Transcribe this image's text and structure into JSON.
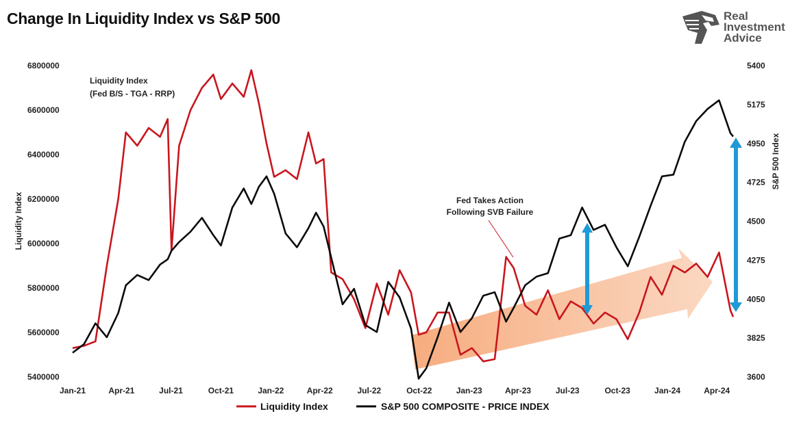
{
  "title": "Change In Liquidity Index vs S&P 500",
  "logo": {
    "line1": "Real",
    "line2": "Investment",
    "line3": "Advice",
    "icon": "eagle-head-icon"
  },
  "colors": {
    "liquidity": "#c8161d",
    "sp500": "#0a0a0a",
    "arrow_blue": "#1f9ad6",
    "trend_arrow": "#f5b38a"
  },
  "annotations": {
    "liquidity_label_line1": "Liquidity Index",
    "liquidity_label_line2": "(Fed B/S - TGA - RRP)",
    "fed_line1": "Fed Takes Action",
    "fed_line2": "Following SVB Failure"
  },
  "chart_data": {
    "type": "line",
    "xlabel": "",
    "ylabel_left": "Liquidity Index",
    "ylabel_right": "S&P 500 Index",
    "ylim_left": [
      5400000,
      6800000
    ],
    "ylim_right": [
      3600,
      5400
    ],
    "yticks_left": [
      "6800000",
      "6600000",
      "6400000",
      "6200000",
      "6000000",
      "5800000",
      "5600000",
      "5400000"
    ],
    "yticks_right": [
      "5400",
      "5175",
      "4950",
      "4725",
      "4500",
      "4275",
      "4050",
      "3825",
      "3600"
    ],
    "x_range": [
      "2021-01-01",
      "2024-05-01"
    ],
    "xticks": [
      "Jan-21",
      "Apr-21",
      "Jul-21",
      "Oct-21",
      "Jan-22",
      "Apr-22",
      "Jul-22",
      "Oct-22",
      "Jan-23",
      "Apr-23",
      "Jul-23",
      "Oct-23",
      "Jan-24",
      "Apr-24"
    ],
    "legend": [
      "Liquidity Index",
      "S&P 500 COMPOSITE - PRICE INDEX"
    ],
    "legend_position": "bottom",
    "grid": false,
    "series": [
      {
        "name": "Liquidity Index",
        "axis": "left",
        "x": [
          "2021-01-01",
          "2021-01-22",
          "2021-02-12",
          "2021-03-05",
          "2021-03-26",
          "2021-04-09",
          "2021-04-30",
          "2021-05-21",
          "2021-06-11",
          "2021-06-25",
          "2021-07-02",
          "2021-07-16",
          "2021-08-06",
          "2021-08-27",
          "2021-09-17",
          "2021-10-01",
          "2021-10-22",
          "2021-11-12",
          "2021-11-26",
          "2021-12-10",
          "2021-12-24",
          "2022-01-07",
          "2022-01-28",
          "2022-02-18",
          "2022-03-11",
          "2022-03-25",
          "2022-04-08",
          "2022-04-22",
          "2022-05-13",
          "2022-06-03",
          "2022-06-24",
          "2022-07-15",
          "2022-08-05",
          "2022-08-26",
          "2022-09-16",
          "2022-09-30",
          "2022-10-14",
          "2022-11-04",
          "2022-11-25",
          "2022-12-16",
          "2023-01-06",
          "2023-01-27",
          "2023-02-17",
          "2023-03-10",
          "2023-03-24",
          "2023-04-14",
          "2023-05-05",
          "2023-05-26",
          "2023-06-16",
          "2023-07-07",
          "2023-07-28",
          "2023-08-18",
          "2023-09-08",
          "2023-09-29",
          "2023-10-20",
          "2023-11-10",
          "2023-12-01",
          "2023-12-22",
          "2024-01-12",
          "2024-02-02",
          "2024-02-23",
          "2024-03-15",
          "2024-04-05",
          "2024-04-26",
          "2024-05-01"
        ],
        "values": [
          5530000,
          5540000,
          5560000,
          5900000,
          6200000,
          6500000,
          6440000,
          6520000,
          6480000,
          6560000,
          5970000,
          6440000,
          6600000,
          6700000,
          6760000,
          6650000,
          6720000,
          6660000,
          6780000,
          6630000,
          6450000,
          6300000,
          6330000,
          6290000,
          6500000,
          6360000,
          6380000,
          5870000,
          5840000,
          5750000,
          5620000,
          5820000,
          5680000,
          5880000,
          5780000,
          5590000,
          5600000,
          5690000,
          5690000,
          5500000,
          5530000,
          5470000,
          5480000,
          5940000,
          5890000,
          5720000,
          5680000,
          5790000,
          5660000,
          5740000,
          5710000,
          5640000,
          5690000,
          5660000,
          5570000,
          5690000,
          5850000,
          5770000,
          5900000,
          5870000,
          5910000,
          5850000,
          5960000,
          5700000,
          5670000
        ]
      },
      {
        "name": "S&P 500 COMPOSITE - PRICE INDEX",
        "axis": "right",
        "x": [
          "2021-01-01",
          "2021-01-22",
          "2021-02-12",
          "2021-03-05",
          "2021-03-26",
          "2021-04-09",
          "2021-04-30",
          "2021-05-21",
          "2021-06-11",
          "2021-06-25",
          "2021-07-02",
          "2021-07-16",
          "2021-08-06",
          "2021-08-27",
          "2021-09-17",
          "2021-10-01",
          "2021-10-22",
          "2021-11-12",
          "2021-11-26",
          "2021-12-10",
          "2021-12-24",
          "2022-01-07",
          "2022-01-28",
          "2022-02-18",
          "2022-03-11",
          "2022-03-25",
          "2022-04-08",
          "2022-04-22",
          "2022-05-13",
          "2022-06-03",
          "2022-06-24",
          "2022-07-15",
          "2022-08-05",
          "2022-08-26",
          "2022-09-16",
          "2022-09-30",
          "2022-10-14",
          "2022-11-04",
          "2022-11-25",
          "2022-12-16",
          "2023-01-06",
          "2023-01-27",
          "2023-02-17",
          "2023-03-10",
          "2023-03-24",
          "2023-04-14",
          "2023-05-05",
          "2023-05-26",
          "2023-06-16",
          "2023-07-07",
          "2023-07-28",
          "2023-08-18",
          "2023-09-08",
          "2023-09-29",
          "2023-10-20",
          "2023-11-10",
          "2023-12-01",
          "2023-12-22",
          "2024-01-12",
          "2024-02-02",
          "2024-02-23",
          "2024-03-15",
          "2024-04-05",
          "2024-04-26",
          "2024-05-01"
        ],
        "values": [
          3740,
          3790,
          3910,
          3830,
          3970,
          4130,
          4190,
          4160,
          4250,
          4280,
          4330,
          4380,
          4440,
          4520,
          4420,
          4360,
          4580,
          4690,
          4600,
          4700,
          4760,
          4660,
          4430,
          4350,
          4460,
          4550,
          4470,
          4290,
          4020,
          4110,
          3900,
          3860,
          4150,
          4060,
          3880,
          3590,
          3650,
          3830,
          4030,
          3860,
          3940,
          4070,
          4090,
          3920,
          4000,
          4130,
          4180,
          4200,
          4400,
          4420,
          4580,
          4450,
          4480,
          4350,
          4240,
          4410,
          4590,
          4760,
          4770,
          4960,
          5080,
          5150,
          5200,
          5010,
          4990
        ]
      }
    ]
  }
}
